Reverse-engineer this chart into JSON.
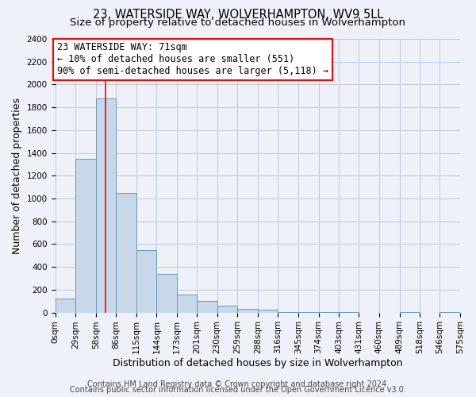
{
  "title": "23, WATERSIDE WAY, WOLVERHAMPTON, WV9 5LL",
  "subtitle": "Size of property relative to detached houses in Wolverhampton",
  "xlabel": "Distribution of detached houses by size in Wolverhampton",
  "ylabel": "Number of detached properties",
  "bin_edges": [
    0,
    29,
    58,
    86,
    115,
    144,
    173,
    201,
    230,
    259,
    288,
    316,
    345,
    374,
    403,
    431,
    460,
    489,
    518,
    546,
    575
  ],
  "bin_counts": [
    125,
    1350,
    1880,
    1050,
    550,
    340,
    160,
    105,
    60,
    35,
    25,
    5,
    5,
    5,
    5,
    0,
    0,
    5,
    0,
    5
  ],
  "bar_color": "#c8d8ea",
  "bar_edge_color": "#6699bb",
  "red_line_x": 71,
  "annotation_line1": "23 WATERSIDE WAY: 71sqm",
  "annotation_line2": "← 10% of detached houses are smaller (551)",
  "annotation_line3": "90% of semi-detached houses are larger (5,118) →",
  "annotation_box_color": "white",
  "annotation_border_color": "red",
  "ylim": [
    0,
    2400
  ],
  "yticks": [
    0,
    200,
    400,
    600,
    800,
    1000,
    1200,
    1400,
    1600,
    1800,
    2000,
    2200,
    2400
  ],
  "xtick_labels": [
    "0sqm",
    "29sqm",
    "58sqm",
    "86sqm",
    "115sqm",
    "144sqm",
    "173sqm",
    "201sqm",
    "230sqm",
    "259sqm",
    "288sqm",
    "316sqm",
    "345sqm",
    "374sqm",
    "403sqm",
    "431sqm",
    "460sqm",
    "489sqm",
    "518sqm",
    "546sqm",
    "575sqm"
  ],
  "footer_line1": "Contains HM Land Registry data © Crown copyright and database right 2024.",
  "footer_line2": "Contains public sector information licensed under the Open Government Licence v3.0.",
  "background_color": "#eef2f8",
  "plot_background_color": "#eef2f8",
  "grid_color": "#c0c8d8",
  "title_fontsize": 10.5,
  "subtitle_fontsize": 9.5,
  "axis_label_fontsize": 9,
  "tick_fontsize": 7.5,
  "footer_fontsize": 7
}
